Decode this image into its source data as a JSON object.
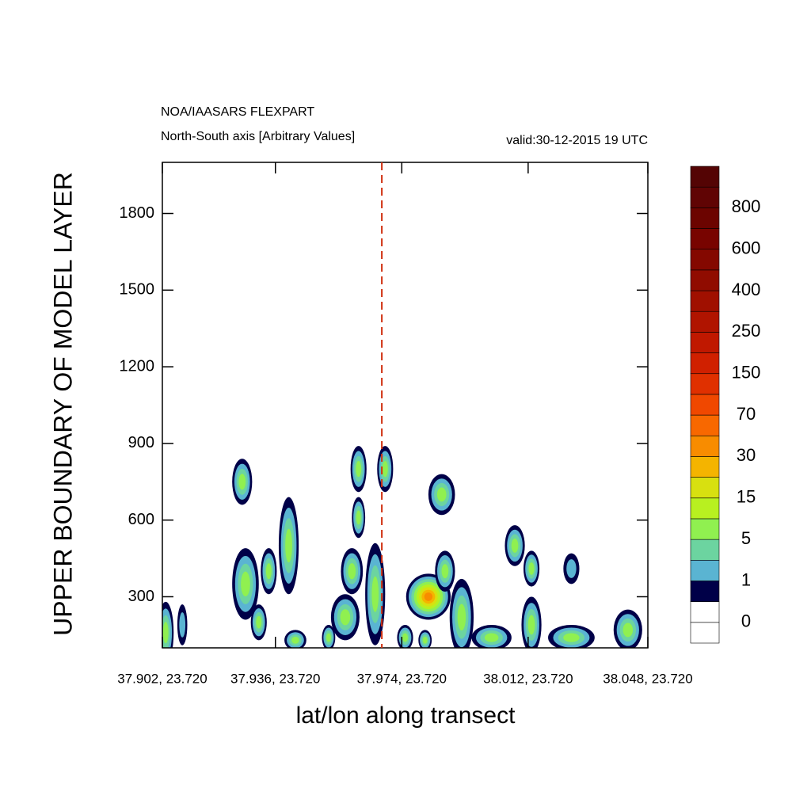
{
  "chart_data": {
    "type": "contour",
    "title": "NOA/IAASARS FLEXPART",
    "subtitle": "North-South axis [Arbitrary Values]",
    "annotation": "valid:30-12-2015 19 UTC",
    "xlabel": "lat/lon along transect",
    "ylabel": "UPPER BOUNDARY OF MODEL LAYER",
    "xlim": [
      37.902,
      38.048
    ],
    "xticks": [
      {
        "value": 37.902,
        "label": "37.902, 23.720"
      },
      {
        "value": 37.936,
        "label": "37.936, 23.720"
      },
      {
        "value": 37.974,
        "label": "37.974, 23.720"
      },
      {
        "value": 38.012,
        "label": "38.012, 23.720"
      },
      {
        "value": 38.048,
        "label": "38.048, 23.720"
      }
    ],
    "ylim": [
      100,
      2000
    ],
    "yticks": [
      300,
      600,
      900,
      1200,
      1500,
      1800
    ],
    "marker_x": 37.968,
    "marker_color": "#d03010",
    "colorbar": {
      "colors": [
        "#ffffff",
        "#ffffff",
        "#000048",
        "#5ab4d2",
        "#6cd4a0",
        "#90f050",
        "#b8f020",
        "#d8e010",
        "#f4b400",
        "#f88c00",
        "#f86800",
        "#f04800",
        "#e03000",
        "#d02000",
        "#c01800",
        "#b01400",
        "#a01000",
        "#900c00",
        "#840800",
        "#780400",
        "#6c0400",
        "#600404",
        "#540404"
      ],
      "labels": [
        0,
        1,
        5,
        15,
        30,
        70,
        150,
        250,
        400,
        600,
        800
      ]
    },
    "features": [
      {
        "x": 37.926,
        "y": 750,
        "rx": 0.003,
        "ry": 90,
        "peak": 10
      },
      {
        "x": 37.927,
        "y": 350,
        "rx": 0.004,
        "ry": 140,
        "peak": 5
      },
      {
        "x": 37.934,
        "y": 400,
        "rx": 0.0024,
        "ry": 90,
        "peak": 5
      },
      {
        "x": 37.94,
        "y": 500,
        "rx": 0.003,
        "ry": 190,
        "peak": 10
      },
      {
        "x": 37.931,
        "y": 200,
        "rx": 0.0024,
        "ry": 70,
        "peak": 5
      },
      {
        "x": 37.961,
        "y": 800,
        "rx": 0.0024,
        "ry": 90,
        "peak": 10
      },
      {
        "x": 37.961,
        "y": 610,
        "rx": 0.002,
        "ry": 80,
        "peak": 10
      },
      {
        "x": 37.959,
        "y": 400,
        "rx": 0.0033,
        "ry": 90,
        "peak": 5
      },
      {
        "x": 37.966,
        "y": 310,
        "rx": 0.003,
        "ry": 200,
        "peak": 10
      },
      {
        "x": 37.969,
        "y": 800,
        "rx": 0.0024,
        "ry": 90,
        "peak": 5
      },
      {
        "x": 37.986,
        "y": 700,
        "rx": 0.004,
        "ry": 80,
        "peak": 5
      },
      {
        "x": 37.982,
        "y": 300,
        "rx": 0.0067,
        "ry": 90,
        "peak": 30
      },
      {
        "x": 37.987,
        "y": 400,
        "rx": 0.003,
        "ry": 80,
        "peak": 5
      },
      {
        "x": 37.992,
        "y": 220,
        "rx": 0.0036,
        "ry": 150,
        "peak": 10
      },
      {
        "x": 38.008,
        "y": 500,
        "rx": 0.003,
        "ry": 80,
        "peak": 5
      },
      {
        "x": 38.013,
        "y": 410,
        "rx": 0.0024,
        "ry": 70,
        "peak": 5
      },
      {
        "x": 38.025,
        "y": 410,
        "rx": 0.0024,
        "ry": 60,
        "peak": 3
      },
      {
        "x": 38.013,
        "y": 190,
        "rx": 0.003,
        "ry": 110,
        "peak": 10
      },
      {
        "x": 38.001,
        "y": 140,
        "rx": 0.006,
        "ry": 50,
        "peak": 5
      },
      {
        "x": 38.025,
        "y": 140,
        "rx": 0.007,
        "ry": 50,
        "peak": 5
      },
      {
        "x": 38.042,
        "y": 170,
        "rx": 0.0043,
        "ry": 80,
        "peak": 10
      },
      {
        "x": 37.903,
        "y": 160,
        "rx": 0.0024,
        "ry": 120,
        "peak": 10
      },
      {
        "x": 37.908,
        "y": 190,
        "rx": 0.0015,
        "ry": 80,
        "peak": 1
      },
      {
        "x": 37.942,
        "y": 130,
        "rx": 0.0033,
        "ry": 40,
        "peak": 5
      },
      {
        "x": 37.952,
        "y": 140,
        "rx": 0.002,
        "ry": 50,
        "peak": 5
      },
      {
        "x": 37.957,
        "y": 220,
        "rx": 0.0043,
        "ry": 90,
        "peak": 5
      },
      {
        "x": 37.975,
        "y": 140,
        "rx": 0.0024,
        "ry": 50,
        "peak": 10
      },
      {
        "x": 37.981,
        "y": 130,
        "rx": 0.002,
        "ry": 40,
        "peak": 5
      }
    ]
  }
}
